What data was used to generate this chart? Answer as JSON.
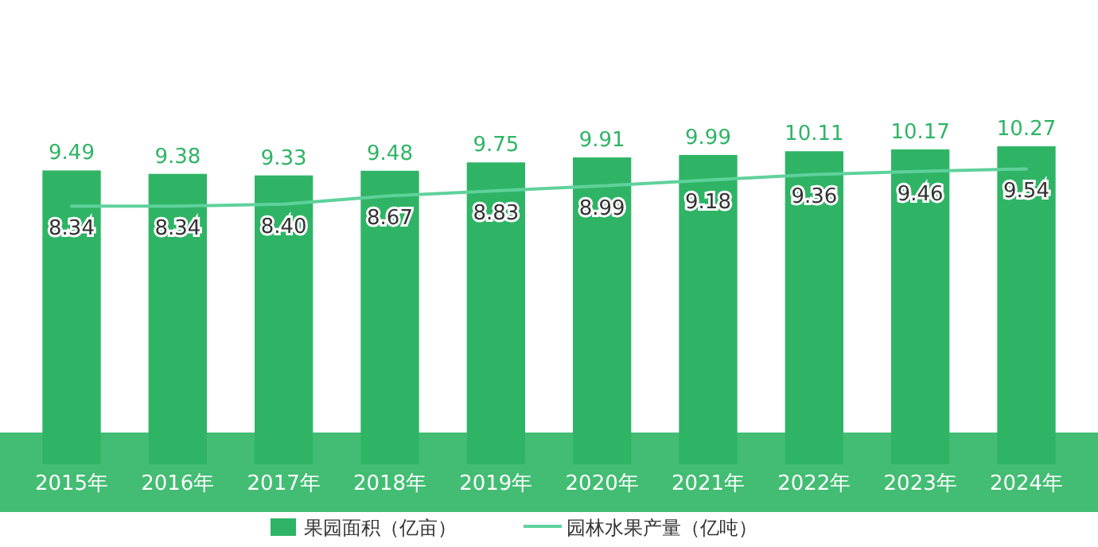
{
  "chart_data": {
    "type": "bar",
    "categories": [
      "2015年",
      "2016年",
      "2017年",
      "2018年",
      "2019年",
      "2020年",
      "2021年",
      "2022年",
      "2023年",
      "2024年"
    ],
    "series": [
      {
        "name": "果园面积（亿亩）",
        "color": "#2fb466",
        "values": [
          9.49,
          9.38,
          9.33,
          9.48,
          9.75,
          9.91,
          9.99,
          10.11,
          10.17,
          10.27
        ],
        "value_labels": [
          "9.49",
          "9.38",
          "9.33",
          "9.48",
          "9.75",
          "9.91",
          "9.99",
          "10.11",
          "10.17",
          "10.27"
        ]
      },
      {
        "name": "园林水果产量（亿吨）",
        "type": "line",
        "color": "#5fd19c",
        "values": [
          8.34,
          8.34,
          8.4,
          8.67,
          8.83,
          8.99,
          9.18,
          9.36,
          9.46,
          9.54
        ],
        "value_labels": [
          "8.34",
          "8.34",
          "8.40",
          "8.67",
          "8.83",
          "8.99",
          "9.18",
          "9.36",
          "9.46",
          "9.54"
        ]
      }
    ],
    "legend": "bottom",
    "marker": "none"
  }
}
